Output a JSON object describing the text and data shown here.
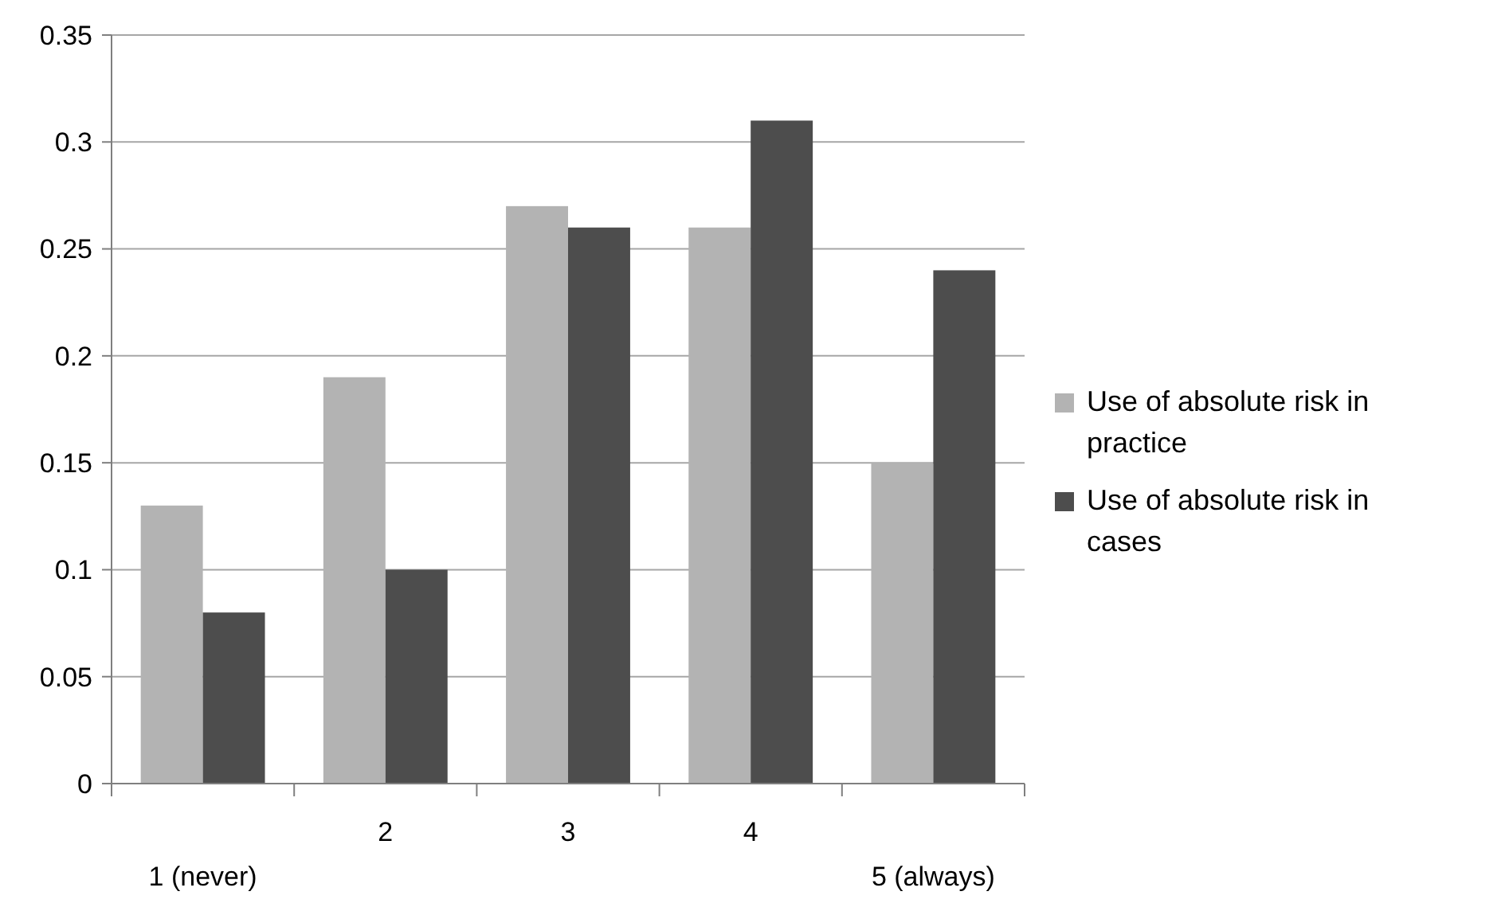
{
  "chart_data": {
    "type": "bar",
    "categories": [
      "1 (never)",
      "2",
      "3",
      "4",
      "5 (always)"
    ],
    "series": [
      {
        "name": "Use of absolute risk in practice",
        "color": "#b3b3b3",
        "values": [
          0.13,
          0.19,
          0.27,
          0.26,
          0.15
        ]
      },
      {
        "name": "Use of absolute risk in cases",
        "color": "#4d4d4d",
        "values": [
          0.08,
          0.1,
          0.26,
          0.31,
          0.24
        ]
      }
    ],
    "ylim": [
      0,
      0.35
    ],
    "yticks": [
      0,
      0.05,
      {
        "value": 0.1,
        "label": "0.1"
      },
      0.15,
      {
        "value": 0.2,
        "label": "0.2"
      },
      0.25,
      {
        "value": 0.3,
        "label": "0.3"
      },
      0.35
    ],
    "grid": "y",
    "legend": "right"
  }
}
